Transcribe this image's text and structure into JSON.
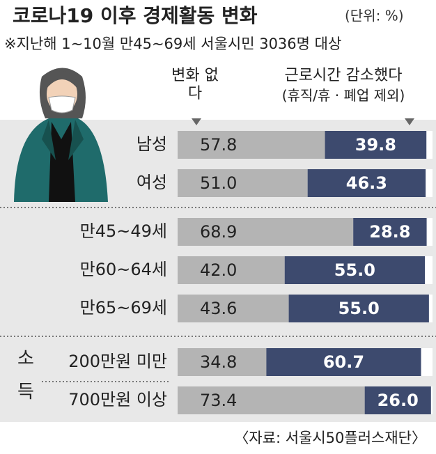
{
  "chart_data": {
    "type": "stacked-bar-horizontal",
    "title": "코로나19 이후 경제활동 변화",
    "unit": "(단위: %)",
    "subtitle": "※지난해 1~10월 만45~69세 서울시민 3036명 대상",
    "categories": [
      "남성",
      "여성",
      "만45~49세",
      "만60~64세",
      "만65~69세",
      "200만원 미만",
      "700만원 이상"
    ],
    "group_label": "소득",
    "xlim": [
      0,
      100
    ],
    "series": [
      {
        "name": "변화 없다",
        "color": "#b4b4b4",
        "values": [
          57.8,
          51.0,
          68.9,
          42.0,
          43.6,
          34.8,
          73.4
        ],
        "value_labels": [
          "57.8",
          "51.0",
          "68.9",
          "42.0",
          "43.6",
          "34.8",
          "73.4"
        ]
      },
      {
        "name": "근로시간 감소했다",
        "note": "(휴직/휴 · 폐업 제외)",
        "color": "#3d4a6e",
        "values": [
          39.8,
          46.3,
          28.8,
          55.0,
          55.0,
          60.7,
          26.0
        ],
        "value_labels": [
          "39.8",
          "46.3",
          "28.8",
          "55.0",
          "55.0",
          "60.7",
          "26.0"
        ]
      }
    ],
    "source": "〈자료: 서울시50플러스재단〉"
  }
}
